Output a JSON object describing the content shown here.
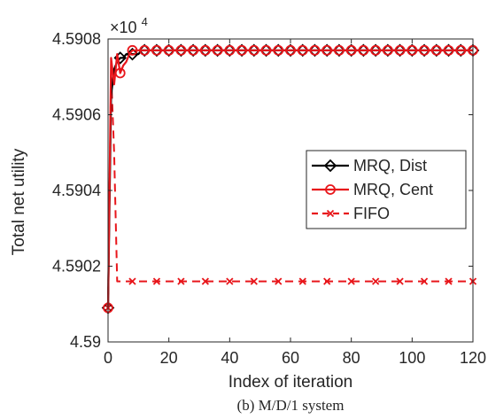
{
  "chart_data": {
    "type": "line",
    "xlabel": "Index of iteration",
    "ylabel": "Total net utility",
    "multiplier": "×10",
    "multiplier_exp": "4",
    "caption": "(b) M/D/1 system",
    "xlim": [
      0,
      120
    ],
    "ylim": [
      4.59,
      4.5908
    ],
    "x_ticks": [
      0,
      20,
      40,
      60,
      80,
      100,
      120
    ],
    "x_tick_labels": [
      "0",
      "20",
      "40",
      "60",
      "80",
      "100",
      "120"
    ],
    "y_ticks": [
      4.59,
      4.5902,
      4.5904,
      4.5906,
      4.5908
    ],
    "y_tick_labels": [
      "4.59",
      "4.5902",
      "4.5904",
      "4.5906",
      "4.5908"
    ],
    "legend_position": "right-middle",
    "series": [
      {
        "name": "MRQ, Dist",
        "color": "#000000",
        "line_style": "solid",
        "marker": "diamond",
        "marker_every": 4,
        "x": [
          0,
          1,
          2,
          3,
          4,
          5,
          6,
          7,
          8,
          9,
          10,
          11,
          12,
          13,
          14,
          15,
          16,
          17,
          18,
          19,
          20,
          21,
          22,
          23,
          24,
          25,
          26,
          27,
          28,
          29,
          30,
          31,
          32,
          33,
          34,
          35,
          36,
          37,
          38,
          39,
          40,
          41,
          42,
          43,
          44,
          45,
          46,
          47,
          48,
          49,
          50,
          51,
          52,
          53,
          54,
          55,
          56,
          57,
          58,
          59,
          60,
          61,
          62,
          63,
          64,
          65,
          66,
          67,
          68,
          69,
          70,
          71,
          72,
          73,
          74,
          75,
          76,
          77,
          78,
          79,
          80,
          81,
          82,
          83,
          84,
          85,
          86,
          87,
          88,
          89,
          90,
          91,
          92,
          93,
          94,
          95,
          96,
          97,
          98,
          99,
          100,
          101,
          102,
          103,
          104,
          105,
          106,
          107,
          108,
          109,
          110,
          111,
          112,
          113,
          114,
          115,
          116,
          117,
          118,
          119,
          120
        ],
        "y": [
          4.59009,
          4.59065,
          4.59072,
          4.59074,
          4.59075,
          4.59075,
          4.59076,
          4.59076,
          4.59076,
          4.59076,
          4.59076,
          4.59077,
          4.59077,
          4.59077,
          4.59077,
          4.59077,
          4.59077,
          4.59077,
          4.59077,
          4.59077,
          4.59077,
          4.59077,
          4.59077,
          4.59077,
          4.59077,
          4.59077,
          4.59077,
          4.59077,
          4.59077,
          4.59077,
          4.59077,
          4.59077,
          4.59077,
          4.59077,
          4.59077,
          4.59077,
          4.59077,
          4.59077,
          4.59077,
          4.59077,
          4.59077,
          4.59077,
          4.59077,
          4.59077,
          4.59077,
          4.59077,
          4.59077,
          4.59077,
          4.59077,
          4.59077,
          4.59077,
          4.59077,
          4.59077,
          4.59077,
          4.59077,
          4.59077,
          4.59077,
          4.59077,
          4.59077,
          4.59077,
          4.59077,
          4.59077,
          4.59077,
          4.59077,
          4.59077,
          4.59077,
          4.59077,
          4.59077,
          4.59077,
          4.59077,
          4.59077,
          4.59077,
          4.59077,
          4.59077,
          4.59077,
          4.59077,
          4.59077,
          4.59077,
          4.59077,
          4.59077,
          4.59077,
          4.59077,
          4.59077,
          4.59077,
          4.59077,
          4.59077,
          4.59077,
          4.59077,
          4.59077,
          4.59077,
          4.59077,
          4.59077,
          4.59077,
          4.59077,
          4.59077,
          4.59077,
          4.59077,
          4.59077,
          4.59077,
          4.59077,
          4.59077,
          4.59077,
          4.59077,
          4.59077,
          4.59077,
          4.59077,
          4.59077,
          4.59077,
          4.59077,
          4.59077,
          4.59077,
          4.59077,
          4.59077,
          4.59077,
          4.59077,
          4.59077,
          4.59077,
          4.59077,
          4.59077,
          4.59077,
          4.59077
        ]
      },
      {
        "name": "MRQ, Cent",
        "color": "#e8161b",
        "line_style": "solid",
        "marker": "circle",
        "marker_every": 4,
        "x": [
          0,
          1,
          2,
          3,
          4,
          5,
          6,
          7,
          8,
          9,
          10,
          11,
          12,
          13,
          14,
          15,
          16,
          17,
          18,
          19,
          20,
          21,
          22,
          23,
          24,
          25,
          26,
          27,
          28,
          29,
          30,
          31,
          32,
          33,
          34,
          35,
          36,
          37,
          38,
          39,
          40,
          41,
          42,
          43,
          44,
          45,
          46,
          47,
          48,
          49,
          50,
          51,
          52,
          53,
          54,
          55,
          56,
          57,
          58,
          59,
          60,
          61,
          62,
          63,
          64,
          65,
          66,
          67,
          68,
          69,
          70,
          71,
          72,
          73,
          74,
          75,
          76,
          77,
          78,
          79,
          80,
          81,
          82,
          83,
          84,
          85,
          86,
          87,
          88,
          89,
          90,
          91,
          92,
          93,
          94,
          95,
          96,
          97,
          98,
          99,
          100,
          101,
          102,
          103,
          104,
          105,
          106,
          107,
          108,
          109,
          110,
          111,
          112,
          113,
          114,
          115,
          116,
          117,
          118,
          119,
          120
        ],
        "y": [
          4.59009,
          4.59075,
          4.59068,
          4.59076,
          4.59071,
          4.59073,
          4.59074,
          4.59076,
          4.59077,
          4.59077,
          4.59077,
          4.59077,
          4.59077,
          4.59077,
          4.59077,
          4.59077,
          4.59077,
          4.59077,
          4.59077,
          4.59077,
          4.59077,
          4.59077,
          4.59077,
          4.59077,
          4.59077,
          4.59077,
          4.59077,
          4.59077,
          4.59077,
          4.59077,
          4.59077,
          4.59077,
          4.59077,
          4.59077,
          4.59077,
          4.59077,
          4.59077,
          4.59077,
          4.59077,
          4.59077,
          4.59077,
          4.59077,
          4.59077,
          4.59077,
          4.59077,
          4.59077,
          4.59077,
          4.59077,
          4.59077,
          4.59077,
          4.59077,
          4.59077,
          4.59077,
          4.59077,
          4.59077,
          4.59077,
          4.59077,
          4.59077,
          4.59077,
          4.59077,
          4.59077,
          4.59077,
          4.59077,
          4.59077,
          4.59077,
          4.59077,
          4.59077,
          4.59077,
          4.59077,
          4.59077,
          4.59077,
          4.59077,
          4.59077,
          4.59077,
          4.59077,
          4.59077,
          4.59077,
          4.59077,
          4.59077,
          4.59077,
          4.59077,
          4.59077,
          4.59077,
          4.59077,
          4.59077,
          4.59077,
          4.59077,
          4.59077,
          4.59077,
          4.59077,
          4.59077,
          4.59077,
          4.59077,
          4.59077,
          4.59077,
          4.59077,
          4.59077,
          4.59077,
          4.59077,
          4.59077,
          4.59077,
          4.59077,
          4.59077,
          4.59077,
          4.59077,
          4.59077,
          4.59077,
          4.59077,
          4.59077,
          4.59077,
          4.59077,
          4.59077,
          4.59077,
          4.59077,
          4.59077,
          4.59077,
          4.59077,
          4.59077,
          4.59077,
          4.59077,
          4.59077
        ]
      },
      {
        "name": "FIFO",
        "color": "#e8161b",
        "line_style": "dashed",
        "marker": "x",
        "marker_every": 8,
        "x": [
          0,
          1,
          2,
          3,
          4,
          5,
          6,
          7,
          8,
          9,
          10,
          11,
          12,
          13,
          14,
          15,
          16,
          17,
          18,
          19,
          20,
          21,
          22,
          23,
          24,
          25,
          26,
          27,
          28,
          29,
          30,
          31,
          32,
          33,
          34,
          35,
          36,
          37,
          38,
          39,
          40,
          41,
          42,
          43,
          44,
          45,
          46,
          47,
          48,
          49,
          50,
          51,
          52,
          53,
          54,
          55,
          56,
          57,
          58,
          59,
          60,
          61,
          62,
          63,
          64,
          65,
          66,
          67,
          68,
          69,
          70,
          71,
          72,
          73,
          74,
          75,
          76,
          77,
          78,
          79,
          80,
          81,
          82,
          83,
          84,
          85,
          86,
          87,
          88,
          89,
          90,
          91,
          92,
          93,
          94,
          95,
          96,
          97,
          98,
          99,
          100,
          101,
          102,
          103,
          104,
          105,
          106,
          107,
          108,
          109,
          110,
          111,
          112,
          113,
          114,
          115,
          116,
          117,
          118,
          119,
          120
        ],
        "y": [
          4.59009,
          4.59071,
          4.5905,
          4.59016,
          4.59016,
          4.59016,
          4.59016,
          4.59016,
          4.59016,
          4.59016,
          4.59016,
          4.59016,
          4.59016,
          4.59016,
          4.59016,
          4.59016,
          4.59016,
          4.59016,
          4.59016,
          4.59016,
          4.59016,
          4.59016,
          4.59016,
          4.59016,
          4.59016,
          4.59016,
          4.59016,
          4.59016,
          4.59016,
          4.59016,
          4.59016,
          4.59016,
          4.59016,
          4.59016,
          4.59016,
          4.59016,
          4.59016,
          4.59016,
          4.59016,
          4.59016,
          4.59016,
          4.59016,
          4.59016,
          4.59016,
          4.59016,
          4.59016,
          4.59016,
          4.59016,
          4.59016,
          4.59016,
          4.59016,
          4.59016,
          4.59016,
          4.59016,
          4.59016,
          4.59016,
          4.59016,
          4.59016,
          4.59016,
          4.59016,
          4.59016,
          4.59016,
          4.59016,
          4.59016,
          4.59016,
          4.59016,
          4.59016,
          4.59016,
          4.59016,
          4.59016,
          4.59016,
          4.59016,
          4.59016,
          4.59016,
          4.59016,
          4.59016,
          4.59016,
          4.59016,
          4.59016,
          4.59016,
          4.59016,
          4.59016,
          4.59016,
          4.59016,
          4.59016,
          4.59016,
          4.59016,
          4.59016,
          4.59016,
          4.59016,
          4.59016,
          4.59016,
          4.59016,
          4.59016,
          4.59016,
          4.59016,
          4.59016,
          4.59016,
          4.59016,
          4.59016,
          4.59016,
          4.59016,
          4.59016,
          4.59016,
          4.59016,
          4.59016,
          4.59016,
          4.59016,
          4.59016,
          4.59016,
          4.59016,
          4.59016,
          4.59016,
          4.59016,
          4.59016,
          4.59016,
          4.59016,
          4.59016,
          4.59016,
          4.59016,
          4.59016
        ]
      }
    ]
  }
}
